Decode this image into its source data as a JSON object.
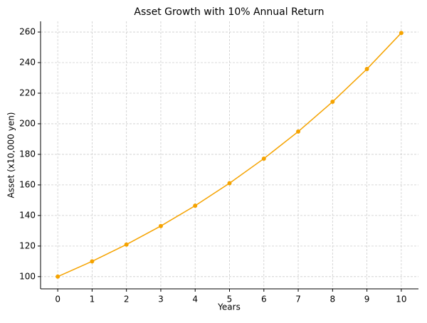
{
  "chart_data": {
    "type": "line",
    "title": "Asset Growth with 10% Annual Return",
    "x_label": "Years",
    "y_label": "Asset (x10,000 yen)",
    "x": [
      0,
      1,
      2,
      3,
      4,
      5,
      6,
      7,
      8,
      9,
      10
    ],
    "series": [
      {
        "color": "#f5a300",
        "values": [
          100,
          110,
          121,
          133.1,
          146.4,
          161.1,
          177.2,
          194.9,
          214.4,
          235.8,
          259.4
        ]
      }
    ],
    "xlim": [
      -0.5,
      10.5
    ],
    "xticks": [
      0,
      1,
      2,
      3,
      4,
      5,
      6,
      7,
      8,
      9,
      10
    ],
    "ylim": [
      92,
      267
    ],
    "yticks": [
      100,
      120,
      140,
      160,
      180,
      200,
      220,
      240,
      260
    ],
    "grid": true
  }
}
